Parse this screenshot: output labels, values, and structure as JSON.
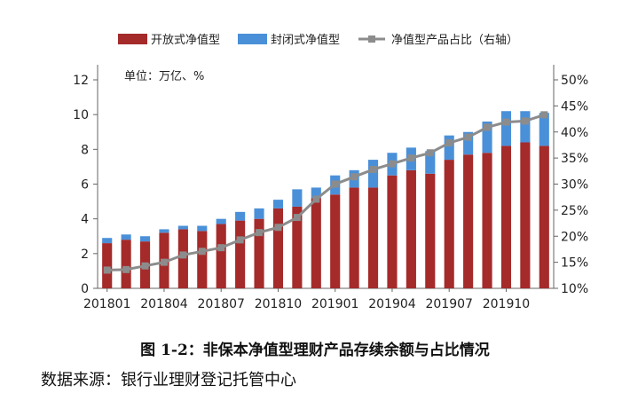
{
  "chart_data": {
    "type": "bar",
    "unit_label": "单位：万亿、%",
    "legend": {
      "placement": "top",
      "items": [
        {
          "label": "开放式净值型",
          "color": "#a52a2a",
          "kind": "bar"
        },
        {
          "label": "封闭式净值型",
          "color": "#4a90d9",
          "kind": "bar"
        },
        {
          "label": "净值型产品占比（右轴）",
          "color": "#8c8c8c",
          "kind": "line"
        }
      ]
    },
    "y_left": {
      "min": 0,
      "max": 12,
      "ticks": [
        0,
        2,
        4,
        6,
        8,
        10,
        12
      ]
    },
    "y_right": {
      "min": 10,
      "max": 50,
      "ticks": [
        "10%",
        "15%",
        "20%",
        "25%",
        "30%",
        "35%",
        "40%",
        "45%",
        "50%"
      ],
      "tick_values": [
        10,
        15,
        20,
        25,
        30,
        35,
        40,
        45,
        50
      ]
    },
    "x_tick_labels": [
      {
        "index": 0,
        "label": "201801"
      },
      {
        "index": 3,
        "label": "201804"
      },
      {
        "index": 6,
        "label": "201807"
      },
      {
        "index": 9,
        "label": "201810"
      },
      {
        "index": 12,
        "label": "201901"
      },
      {
        "index": 15,
        "label": "201904"
      },
      {
        "index": 18,
        "label": "201907"
      },
      {
        "index": 21,
        "label": "201910"
      }
    ],
    "categories": [
      "201801",
      "201802",
      "201803",
      "201804",
      "201805",
      "201806",
      "201807",
      "201808",
      "201809",
      "201810",
      "201811",
      "201812",
      "201901",
      "201902",
      "201903",
      "201904",
      "201905",
      "201906",
      "201907",
      "201908",
      "201909",
      "201910",
      "201911",
      "201912"
    ],
    "series": [
      {
        "name": "开放式净值型",
        "type": "bar",
        "color": "#a52a2a",
        "values": [
          2.6,
          2.8,
          2.7,
          3.2,
          3.4,
          3.3,
          3.7,
          3.9,
          4.0,
          4.6,
          4.7,
          5.2,
          5.4,
          5.8,
          5.8,
          6.5,
          6.8,
          6.6,
          7.4,
          7.7,
          7.8,
          8.2,
          8.4,
          8.2
        ]
      },
      {
        "name": "封闭式净值型",
        "type": "bar",
        "color": "#4a90d9",
        "values": [
          0.3,
          0.3,
          0.3,
          0.2,
          0.2,
          0.3,
          0.3,
          0.5,
          0.6,
          0.5,
          1.0,
          0.6,
          1.1,
          1.0,
          1.6,
          1.3,
          1.3,
          1.3,
          1.4,
          1.3,
          1.8,
          2.0,
          1.8,
          1.9
        ]
      },
      {
        "name": "净值型产品占比（右轴）",
        "type": "line",
        "color": "#8c8c8c",
        "values": [
          13.5,
          13.6,
          14.3,
          15.0,
          16.4,
          17.1,
          17.8,
          19.3,
          20.7,
          21.7,
          23.6,
          27.1,
          30.0,
          31.4,
          32.8,
          33.9,
          35.0,
          36.0,
          37.9,
          39.0,
          40.9,
          41.9,
          42.1,
          43.3
        ]
      }
    ]
  },
  "figure": {
    "caption": "图 1-2：非保本净值型理财产品存续余额与占比情况",
    "source": "数据来源：银行业理财登记托管中心"
  }
}
